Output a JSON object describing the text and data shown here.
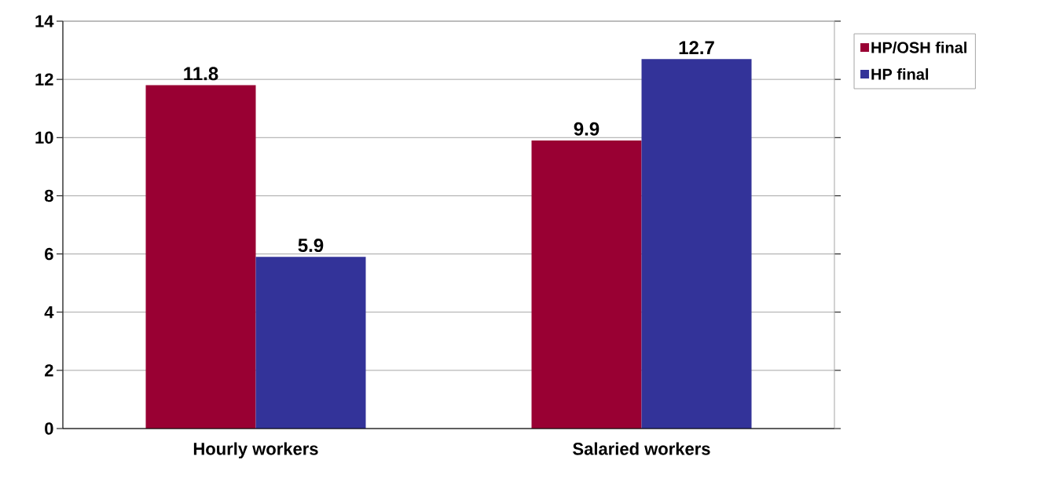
{
  "chart_data": {
    "type": "bar",
    "categories": [
      "Hourly workers",
      "Salaried workers"
    ],
    "series": [
      {
        "name": "HP/OSH final",
        "color": "#990033",
        "values": [
          11.8,
          9.9
        ]
      },
      {
        "name": "HP final",
        "color": "#333399",
        "values": [
          5.9,
          12.7
        ]
      }
    ],
    "ylim": [
      0,
      14
    ],
    "yticks": [
      0,
      2,
      4,
      6,
      8,
      10,
      12,
      14
    ],
    "grid": "y",
    "legend": "top right",
    "data_labels": true
  }
}
